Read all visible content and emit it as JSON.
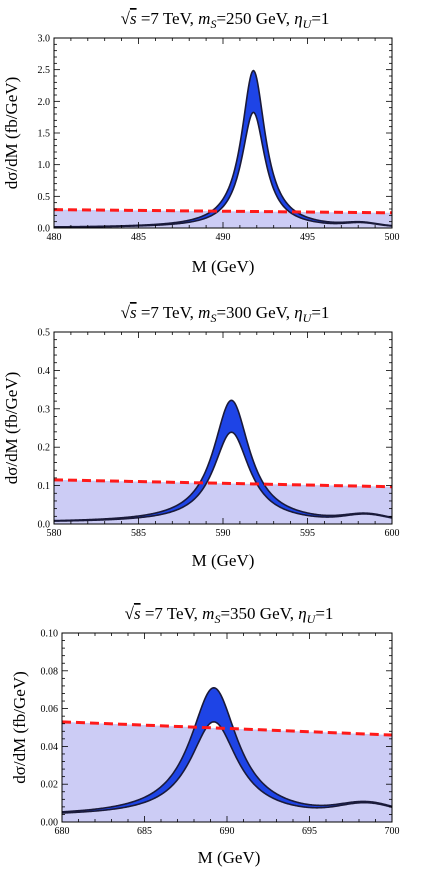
{
  "chart_data": [
    {
      "type": "area",
      "title": "√s =7 TeV, m_S=250 GeV, η_U=1",
      "title_parts": {
        "sqrt_s": "s",
        "energy": " =7 TeV, ",
        "m_italic": "m",
        "m_sub": "S",
        "mass": "=250 GeV, ",
        "eta": "η",
        "eta_sub": "U",
        "eta_val": "=1"
      },
      "xlabel": "M (GeV)",
      "ylabel": "dσ/dM (fb/GeV)",
      "xlim": [
        480,
        500
      ],
      "ylim": [
        0,
        3.0
      ],
      "xticks": [
        "480",
        "485",
        "490",
        "495",
        "500"
      ],
      "yticks": [
        "0.0",
        "0.5",
        "1.0",
        "1.5",
        "2.0",
        "2.5",
        "3.0"
      ],
      "peak": {
        "x0": 491.8,
        "gamma": 0.85,
        "height_low": 1.82,
        "height_high": 2.48
      },
      "bump": {
        "x0": 498.2,
        "sigma": 0.9,
        "height": 0.05
      },
      "dip": {
        "x0": 496.8
      },
      "background": 0.005,
      "limit_line": {
        "x": [
          480,
          500
        ],
        "y": [
          0.29,
          0.24
        ],
        "color": "#ff1a1a",
        "style": "dashed"
      },
      "colors": {
        "band": "#1e44e6",
        "band_edge": "#000000",
        "fill": "#ccccf5",
        "limit": "#ff1a1a"
      }
    },
    {
      "type": "area",
      "title": "√s =7 TeV, m_S=300 GeV, η_U=1",
      "title_parts": {
        "sqrt_s": "s",
        "energy": " =7 TeV, ",
        "m_italic": "m",
        "m_sub": "S",
        "mass": "=300 GeV, ",
        "eta": "η",
        "eta_sub": "U",
        "eta_val": "=1"
      },
      "xlabel": "M (GeV)",
      "ylabel": "dσ/dM (fb/GeV)",
      "xlim": [
        580,
        600
      ],
      "ylim": [
        0,
        0.5
      ],
      "xticks": [
        "580",
        "585",
        "590",
        "595",
        "600"
      ],
      "yticks": [
        "0.0",
        "0.1",
        "0.2",
        "0.3",
        "0.4",
        "0.5"
      ],
      "peak": {
        "x0": 590.5,
        "gamma": 1.3,
        "height_low": 0.235,
        "height_high": 0.318
      },
      "bump": {
        "x0": 598.5,
        "sigma": 1.2,
        "height": 0.016
      },
      "dip": {
        "x0": 596.0
      },
      "background": 0.004,
      "limit_line": {
        "x": [
          580,
          600
        ],
        "y": [
          0.115,
          0.097
        ],
        "color": "#ff1a1a",
        "style": "dashed"
      },
      "colors": {
        "band": "#1e44e6",
        "band_edge": "#000000",
        "fill": "#ccccf5",
        "limit": "#ff1a1a"
      }
    },
    {
      "type": "area",
      "title": "√s =7 TeV, m_S=350 GeV, η_U=1",
      "title_parts": {
        "sqrt_s": "s",
        "energy": " =7 TeV, ",
        "m_italic": "m",
        "m_sub": "S",
        "mass": "=350 GeV, ",
        "eta": "η",
        "eta_sub": "U",
        "eta_val": "=1"
      },
      "xlabel": "M (GeV)",
      "ylabel": "dσ/dM (fb/GeV)",
      "xlim": [
        680,
        700
      ],
      "ylim": [
        0,
        0.1
      ],
      "xticks": [
        "680",
        "685",
        "690",
        "695",
        "700"
      ],
      "yticks": [
        "0.00",
        "0.02",
        "0.04",
        "0.06",
        "0.08",
        "0.10"
      ],
      "peak": {
        "x0": 689.2,
        "gamma": 1.75,
        "height_low": 0.05,
        "height_high": 0.068
      },
      "bump": {
        "x0": 698.5,
        "sigma": 1.6,
        "height": 0.0055
      },
      "dip": {
        "x0": 695.3
      },
      "background": 0.003,
      "limit_line": {
        "x": [
          680,
          700
        ],
        "y": [
          0.053,
          0.046
        ],
        "color": "#ff1a1a",
        "style": "dashed"
      },
      "colors": {
        "band": "#1e44e6",
        "band_edge": "#000000",
        "fill": "#ccccf5",
        "limit": "#ff1a1a"
      }
    }
  ]
}
